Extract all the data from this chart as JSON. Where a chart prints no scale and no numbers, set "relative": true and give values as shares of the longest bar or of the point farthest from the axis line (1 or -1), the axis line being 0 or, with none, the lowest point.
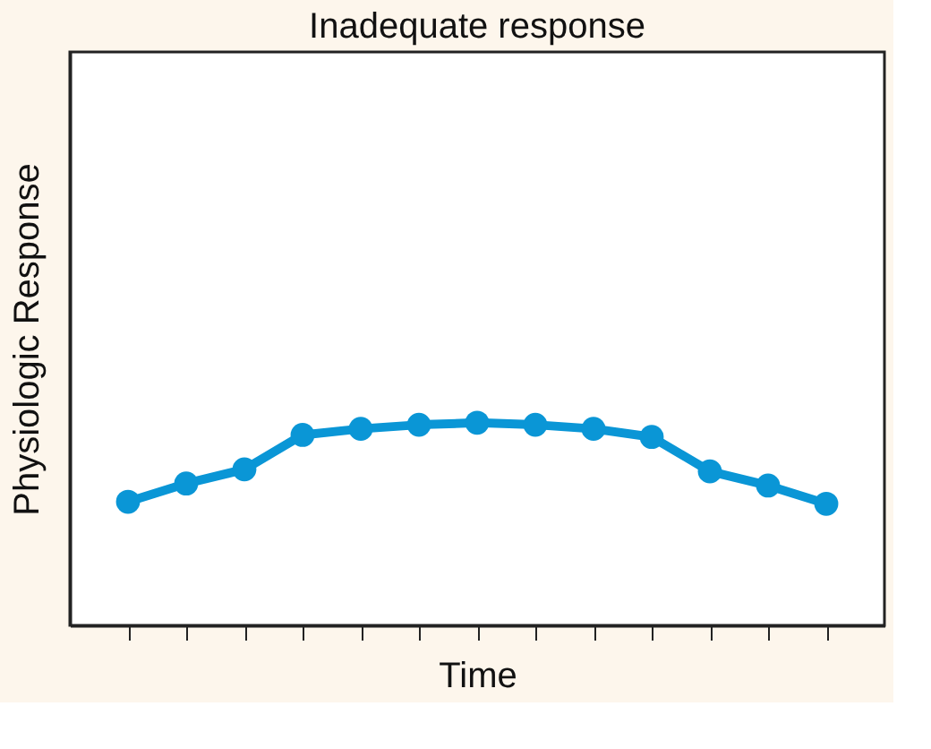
{
  "chart_data": {
    "type": "line",
    "title": "Inadequate response",
    "xlabel": "Time",
    "ylabel": "Physiologic Response",
    "relative": true,
    "marker": "circle",
    "line_style": "solid",
    "grid": false,
    "categories": [
      null,
      null,
      null,
      null,
      null,
      null,
      null,
      null,
      null,
      null,
      null,
      null,
      null
    ],
    "series": [
      {
        "color": "#0a96d6",
        "values": [
          0.61,
          0.7,
          0.77,
          0.94,
          0.97,
          0.99,
          1,
          0.99,
          0.97,
          0.93,
          0.76,
          0.69,
          0.6
        ]
      }
    ]
  }
}
